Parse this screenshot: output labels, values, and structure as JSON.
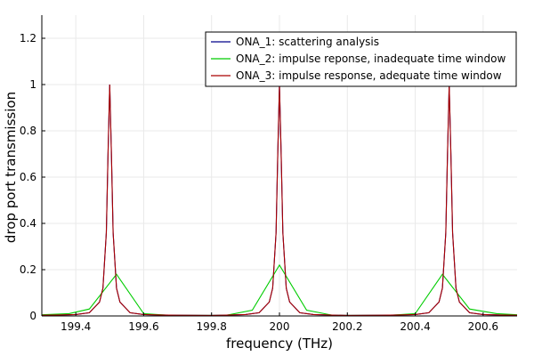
{
  "chart_data": {
    "type": "line",
    "title": "",
    "xlabel": "frequency (THz)",
    "ylabel": "drop port transmission",
    "xlim": [
      199.3,
      200.7
    ],
    "ylim": [
      0,
      1.3
    ],
    "x_ticks": [
      199.4,
      199.6,
      199.8,
      200,
      200.2,
      200.4,
      200.6
    ],
    "x_tick_labels": [
      "199.4",
      "199.6",
      "199.8",
      "200",
      "200.2",
      "200.4",
      "200.6"
    ],
    "y_ticks": [
      0,
      0.2,
      0.4,
      0.6,
      0.8,
      1,
      1.2
    ],
    "y_tick_labels": [
      "0",
      "0.2",
      "0.4",
      "0.6",
      "0.8",
      "1",
      "1.2"
    ],
    "grid": true,
    "legend_position": "top-right",
    "series": [
      {
        "name": "ONA_1: scattering analysis",
        "color": "#00008b",
        "x": [
          199.3,
          199.35,
          199.4,
          199.44,
          199.47,
          199.48,
          199.49,
          199.495,
          199.5,
          199.505,
          199.51,
          199.52,
          199.53,
          199.56,
          199.6,
          199.65,
          199.7,
          199.8,
          199.9,
          199.94,
          199.97,
          199.98,
          199.99,
          199.995,
          200,
          200.005,
          200.01,
          200.02,
          200.03,
          200.06,
          200.1,
          200.2,
          200.3,
          200.35,
          200.4,
          200.44,
          200.47,
          200.48,
          200.49,
          200.495,
          200.5,
          200.505,
          200.51,
          200.52,
          200.53,
          200.56,
          200.6,
          200.65,
          200.7
        ],
        "values": [
          0.003,
          0.004,
          0.006,
          0.014,
          0.06,
          0.12,
          0.36,
          0.7,
          1.0,
          0.7,
          0.36,
          0.12,
          0.06,
          0.014,
          0.006,
          0.004,
          0.003,
          0.002,
          0.006,
          0.014,
          0.06,
          0.12,
          0.36,
          0.7,
          1.0,
          0.7,
          0.36,
          0.12,
          0.06,
          0.014,
          0.006,
          0.002,
          0.003,
          0.004,
          0.006,
          0.014,
          0.06,
          0.12,
          0.36,
          0.7,
          1.0,
          0.7,
          0.36,
          0.12,
          0.06,
          0.014,
          0.006,
          0.004,
          0.003
        ]
      },
      {
        "name": "ONA_2: impulse reponse, inadequate time window",
        "color": "#00cc00",
        "x": [
          199.3,
          199.38,
          199.44,
          199.52,
          199.6,
          199.68,
          199.76,
          199.84,
          199.92,
          200.0,
          200.08,
          200.16,
          200.24,
          200.32,
          200.4,
          200.48,
          200.56,
          200.64,
          200.7
        ],
        "values": [
          0.005,
          0.01,
          0.03,
          0.18,
          0.01,
          0.002,
          0.002,
          0.002,
          0.025,
          0.22,
          0.025,
          0.002,
          0.002,
          0.002,
          0.01,
          0.18,
          0.03,
          0.01,
          0.005
        ]
      },
      {
        "name": "ONA_3: impulse response, adequate time window",
        "color": "#aa0000",
        "x": [
          199.3,
          199.35,
          199.4,
          199.44,
          199.47,
          199.48,
          199.49,
          199.495,
          199.5,
          199.505,
          199.51,
          199.52,
          199.53,
          199.56,
          199.6,
          199.65,
          199.7,
          199.8,
          199.9,
          199.94,
          199.97,
          199.98,
          199.99,
          199.995,
          200,
          200.005,
          200.01,
          200.02,
          200.03,
          200.06,
          200.1,
          200.2,
          200.3,
          200.35,
          200.4,
          200.44,
          200.47,
          200.48,
          200.49,
          200.495,
          200.5,
          200.505,
          200.51,
          200.52,
          200.53,
          200.56,
          200.6,
          200.65,
          200.7
        ],
        "values": [
          0.003,
          0.004,
          0.006,
          0.014,
          0.06,
          0.12,
          0.36,
          0.7,
          1.0,
          0.7,
          0.36,
          0.12,
          0.06,
          0.014,
          0.006,
          0.004,
          0.003,
          0.002,
          0.006,
          0.014,
          0.06,
          0.12,
          0.36,
          0.7,
          1.0,
          0.7,
          0.36,
          0.12,
          0.06,
          0.014,
          0.006,
          0.002,
          0.003,
          0.004,
          0.006,
          0.014,
          0.06,
          0.12,
          0.36,
          0.7,
          1.0,
          0.7,
          0.36,
          0.12,
          0.06,
          0.014,
          0.006,
          0.004,
          0.003
        ]
      }
    ]
  }
}
